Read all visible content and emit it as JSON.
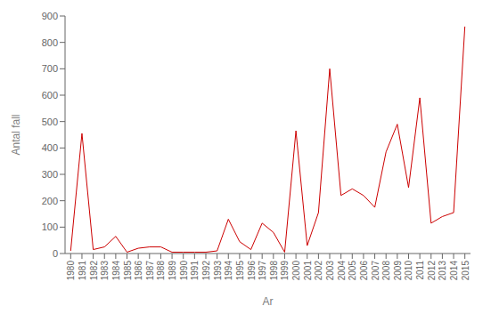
{
  "chart_data": {
    "type": "line",
    "xlabel": "Ar",
    "ylabel": "Antal fall",
    "x": [
      1980,
      1981,
      1982,
      1983,
      1984,
      1985,
      1986,
      1987,
      1988,
      1989,
      1990,
      1991,
      1992,
      1993,
      1994,
      1995,
      1996,
      1997,
      1998,
      1999,
      2000,
      2001,
      2002,
      2003,
      2004,
      2005,
      2006,
      2007,
      2008,
      2009,
      2010,
      2011,
      2012,
      2013,
      2014,
      2015
    ],
    "values": [
      10,
      455,
      15,
      25,
      65,
      5,
      20,
      25,
      25,
      5,
      5,
      5,
      5,
      10,
      130,
      45,
      15,
      115,
      80,
      5,
      465,
      30,
      155,
      700,
      220,
      245,
      220,
      175,
      385,
      490,
      250,
      590,
      115,
      140,
      155,
      860
    ],
    "color": "#cc0000",
    "xlim": [
      1979.5,
      2015.5
    ],
    "xticks": [
      1980,
      1981,
      1982,
      1983,
      1984,
      1985,
      1986,
      1987,
      1988,
      1989,
      1990,
      1991,
      1992,
      1993,
      1994,
      1995,
      1996,
      1997,
      1998,
      1999,
      2000,
      2001,
      2002,
      2003,
      2004,
      2005,
      2006,
      2007,
      2008,
      2009,
      2010,
      2011,
      2012,
      2013,
      2014,
      2015
    ],
    "ylim": [
      0,
      900
    ],
    "yticks": [
      0,
      100,
      200,
      300,
      400,
      500,
      600,
      700,
      800,
      900
    ],
    "grid": false
  }
}
